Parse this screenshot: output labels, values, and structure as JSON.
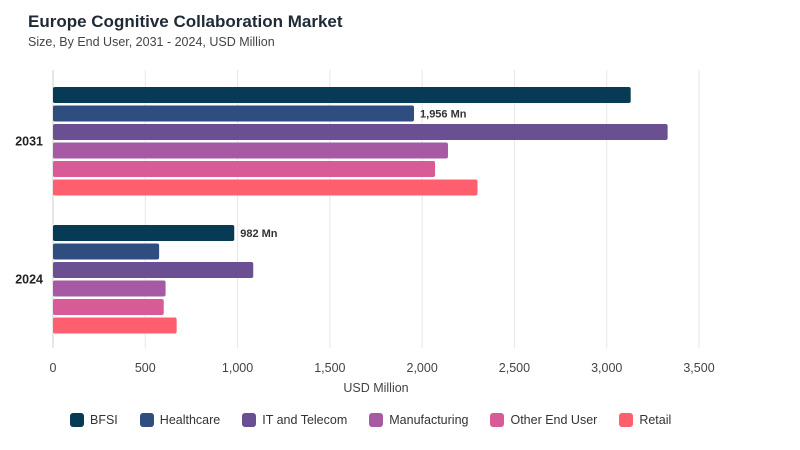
{
  "chart_data": {
    "type": "bar",
    "orientation": "horizontal",
    "title": "Europe Cognitive Collaboration Market",
    "subtitle": "Size, By End User, 2031 - 2024, USD Million",
    "xlabel": "USD Million",
    "ylabel": "",
    "xlim": [
      0,
      3500
    ],
    "xticks": [
      0,
      500,
      1000,
      1500,
      2000,
      2500,
      3000,
      3500
    ],
    "xtick_labels": [
      "0",
      "500",
      "1,000",
      "1,500",
      "2,000",
      "2,500",
      "3,000",
      "3,500"
    ],
    "categories": [
      "2031",
      "2024"
    ],
    "grid": true,
    "legend_position": "bottom",
    "series": [
      {
        "name": "BFSI",
        "color": "#073b55",
        "values": [
          3130,
          982
        ],
        "labels": [
          "",
          "982 Mn"
        ]
      },
      {
        "name": "Healthcare",
        "color": "#2f4e7f",
        "values": [
          1956,
          575
        ],
        "labels": [
          "1,956 Mn",
          ""
        ]
      },
      {
        "name": "IT and Telecom",
        "color": "#6a4f93",
        "values": [
          3330,
          1085
        ],
        "labels": [
          "",
          ""
        ]
      },
      {
        "name": "Manufacturing",
        "color": "#a65aa4",
        "values": [
          2140,
          610
        ],
        "labels": [
          "",
          ""
        ]
      },
      {
        "name": "Other End User",
        "color": "#d85a97",
        "values": [
          2070,
          600
        ],
        "labels": [
          "",
          ""
        ]
      },
      {
        "name": "Retail",
        "color": "#fe5f6f",
        "values": [
          2300,
          670
        ],
        "labels": [
          "",
          ""
        ]
      }
    ]
  }
}
